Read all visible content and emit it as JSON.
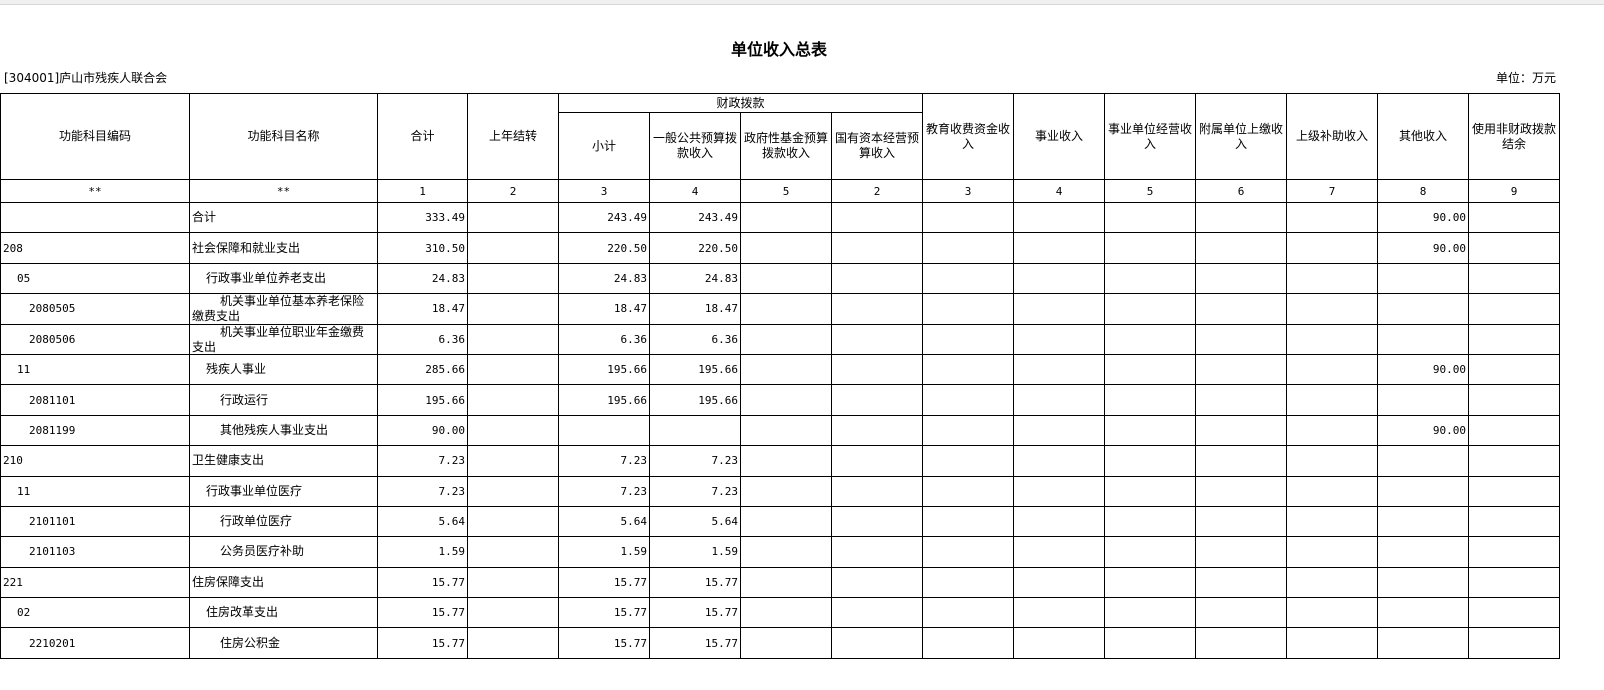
{
  "title": "单位收入总表",
  "org": "[304001]庐山市残疾人联合会",
  "unit": "单位：万元",
  "headers": {
    "code": "功能科目编码",
    "name": "功能科目名称",
    "total": "合计",
    "carryover": "上年结转",
    "fiscal_group": "财政拨款",
    "fiscal": [
      "小计",
      "一般公共预算拨款收入",
      "政府性基金预算拨款收入",
      "国有资本经营预算收入"
    ],
    "others": [
      "教育收费资金收入",
      "事业收入",
      "事业单位经营收入",
      "附属单位上缴收入",
      "上级补助收入",
      "其他收入",
      "使用非财政拨款结余"
    ]
  },
  "col_numbers": [
    "**",
    "**",
    "1",
    "2",
    "3",
    "4",
    "5",
    "2",
    "3",
    "4",
    "5",
    "6",
    "7",
    "8",
    "9"
  ],
  "rows": [
    {
      "code": "",
      "name": "合计",
      "level": 0,
      "values": [
        "333.49",
        "",
        "243.49",
        "243.49",
        "",
        "",
        "",
        "",
        "",
        "",
        "",
        "90.00",
        ""
      ]
    },
    {
      "code": "208",
      "name": "社会保障和就业支出",
      "level": 0,
      "values": [
        "310.50",
        "",
        "220.50",
        "220.50",
        "",
        "",
        "",
        "",
        "",
        "",
        "",
        "90.00",
        ""
      ]
    },
    {
      "code": "05",
      "name": "行政事业单位养老支出",
      "level": 1,
      "values": [
        "24.83",
        "",
        "24.83",
        "24.83",
        "",
        "",
        "",
        "",
        "",
        "",
        "",
        "",
        ""
      ]
    },
    {
      "code": "2080505",
      "name": "机关事业单位基本养老保险缴费支出",
      "level": 2,
      "values": [
        "18.47",
        "",
        "18.47",
        "18.47",
        "",
        "",
        "",
        "",
        "",
        "",
        "",
        "",
        ""
      ]
    },
    {
      "code": "2080506",
      "name": "机关事业单位职业年金缴费支出",
      "level": 2,
      "values": [
        "6.36",
        "",
        "6.36",
        "6.36",
        "",
        "",
        "",
        "",
        "",
        "",
        "",
        "",
        ""
      ]
    },
    {
      "code": "11",
      "name": "残疾人事业",
      "level": 1,
      "values": [
        "285.66",
        "",
        "195.66",
        "195.66",
        "",
        "",
        "",
        "",
        "",
        "",
        "",
        "90.00",
        ""
      ]
    },
    {
      "code": "2081101",
      "name": "行政运行",
      "level": 2,
      "values": [
        "195.66",
        "",
        "195.66",
        "195.66",
        "",
        "",
        "",
        "",
        "",
        "",
        "",
        "",
        ""
      ]
    },
    {
      "code": "2081199",
      "name": "其他残疾人事业支出",
      "level": 2,
      "values": [
        "90.00",
        "",
        "",
        "",
        "",
        "",
        "",
        "",
        "",
        "",
        "",
        "90.00",
        ""
      ]
    },
    {
      "code": "210",
      "name": "卫生健康支出",
      "level": 0,
      "values": [
        "7.23",
        "",
        "7.23",
        "7.23",
        "",
        "",
        "",
        "",
        "",
        "",
        "",
        "",
        ""
      ]
    },
    {
      "code": "11",
      "name": "行政事业单位医疗",
      "level": 1,
      "values": [
        "7.23",
        "",
        "7.23",
        "7.23",
        "",
        "",
        "",
        "",
        "",
        "",
        "",
        "",
        ""
      ]
    },
    {
      "code": "2101101",
      "name": "行政单位医疗",
      "level": 2,
      "values": [
        "5.64",
        "",
        "5.64",
        "5.64",
        "",
        "",
        "",
        "",
        "",
        "",
        "",
        "",
        ""
      ]
    },
    {
      "code": "2101103",
      "name": "公务员医疗补助",
      "level": 2,
      "values": [
        "1.59",
        "",
        "1.59",
        "1.59",
        "",
        "",
        "",
        "",
        "",
        "",
        "",
        "",
        ""
      ]
    },
    {
      "code": "221",
      "name": "住房保障支出",
      "level": 0,
      "values": [
        "15.77",
        "",
        "15.77",
        "15.77",
        "",
        "",
        "",
        "",
        "",
        "",
        "",
        "",
        ""
      ]
    },
    {
      "code": "02",
      "name": "住房改革支出",
      "level": 1,
      "values": [
        "15.77",
        "",
        "15.77",
        "15.77",
        "",
        "",
        "",
        "",
        "",
        "",
        "",
        "",
        ""
      ]
    },
    {
      "code": "2210201",
      "name": "住房公积金",
      "level": 2,
      "values": [
        "15.77",
        "",
        "15.77",
        "15.77",
        "",
        "",
        "",
        "",
        "",
        "",
        "",
        "",
        ""
      ]
    }
  ]
}
